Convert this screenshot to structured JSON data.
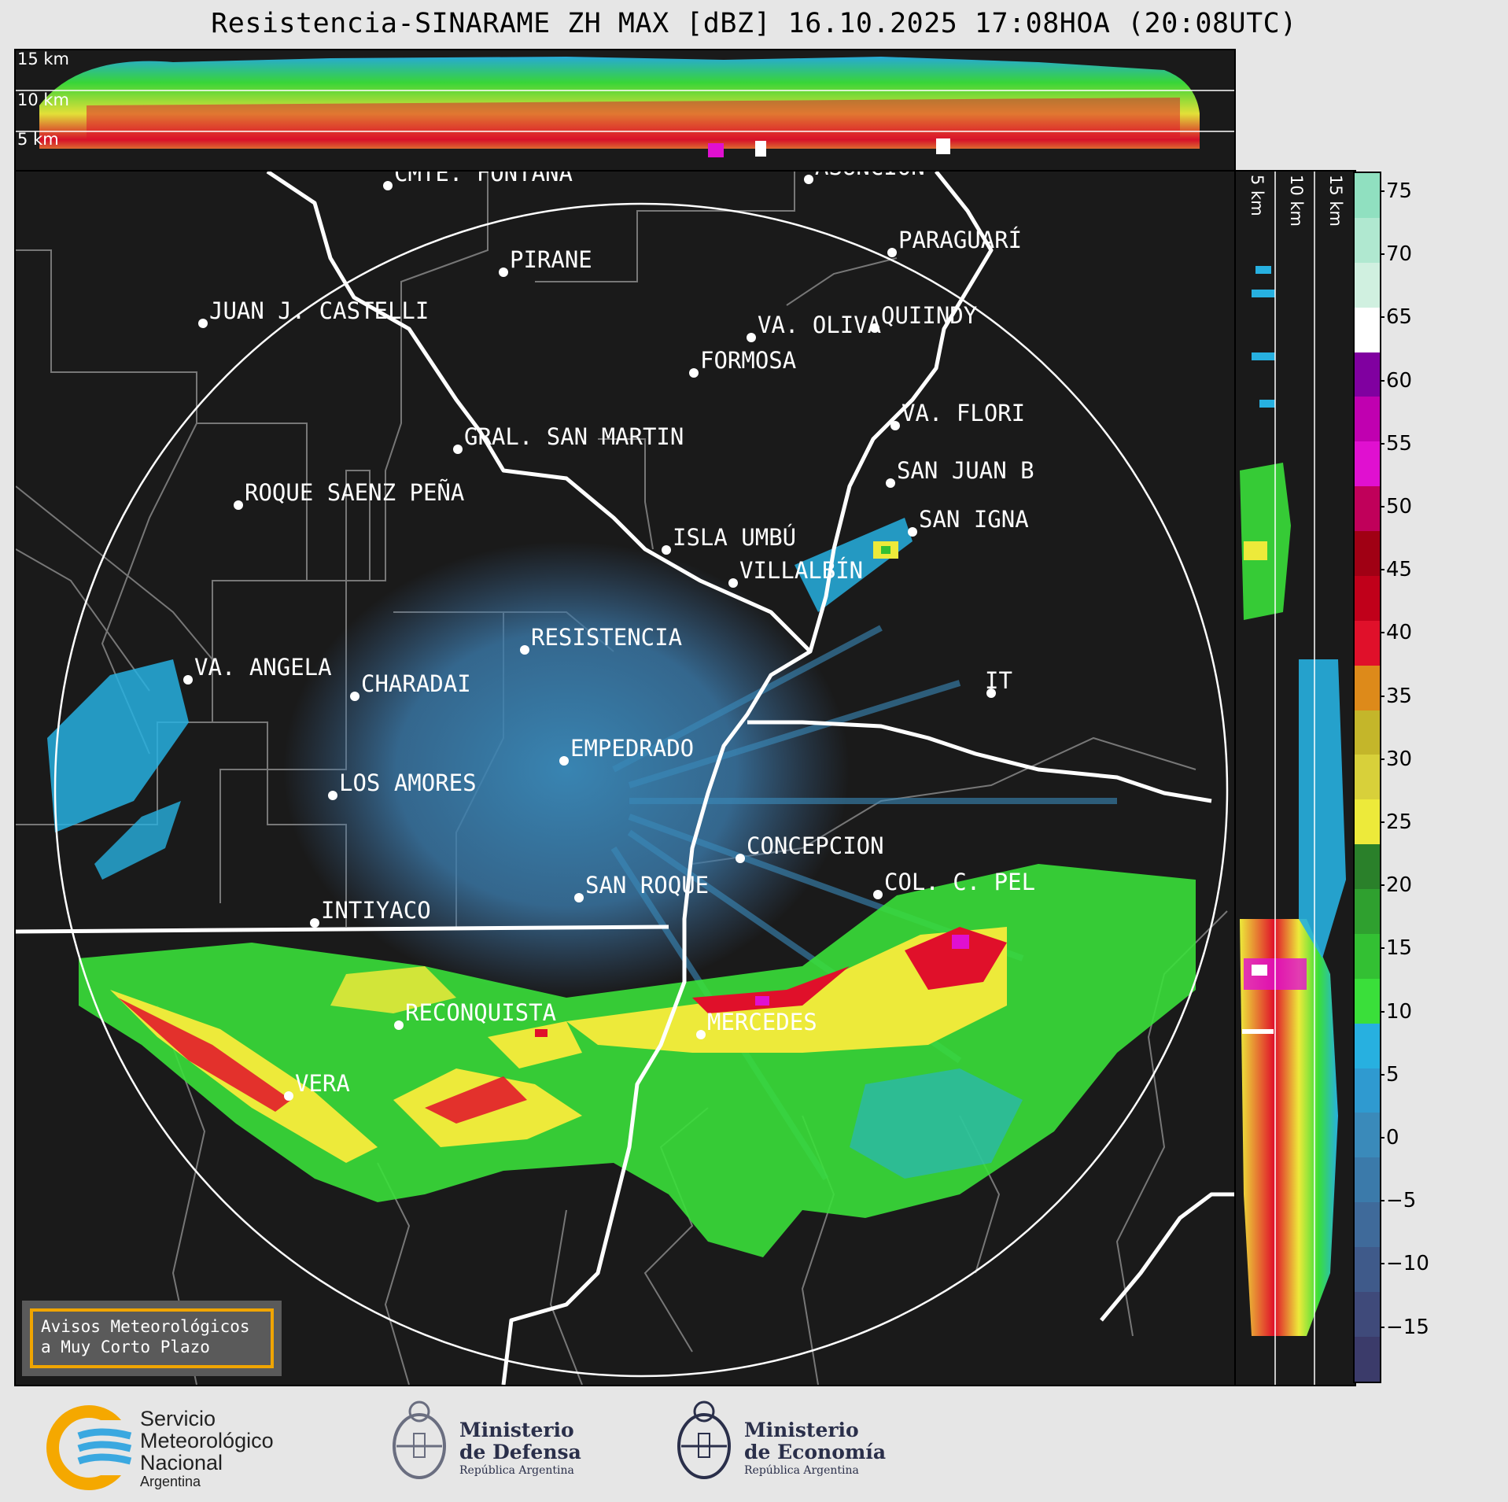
{
  "title": "Resistencia-SINARAME ZH MAX [dBZ] 16.10.2025 17:08HOA (20:08UTC)",
  "top_panel": {
    "height_labels": [
      "15 km",
      "10 km",
      "5 km"
    ]
  },
  "side_panel": {
    "height_labels": [
      "5 km",
      "10 km",
      "15 km"
    ]
  },
  "cities": [
    {
      "name": "CMTE. FONTANA"
    },
    {
      "name": "ASUNCIÓN"
    },
    {
      "name": "PARAGUARÍ"
    },
    {
      "name": "PIRANE"
    },
    {
      "name": "JUAN J. CASTELLI"
    },
    {
      "name": "VA. OLIVA"
    },
    {
      "name": "QUIINDY"
    },
    {
      "name": "FORMOSA"
    },
    {
      "name": "VA. FLORI"
    },
    {
      "name": "GRAL. SAN MARTIN"
    },
    {
      "name": "SAN JUAN B"
    },
    {
      "name": "ROQUE SAENZ PEÑA"
    },
    {
      "name": "SAN IGNA"
    },
    {
      "name": "ISLA UMBÚ"
    },
    {
      "name": "VILLALBÍN"
    },
    {
      "name": "RESISTENCIA"
    },
    {
      "name": "VA. ANGELA"
    },
    {
      "name": "CHARADAI"
    },
    {
      "name": "IT"
    },
    {
      "name": "EMPEDRADO"
    },
    {
      "name": "LOS AMORES"
    },
    {
      "name": "CONCEPCION"
    },
    {
      "name": "COL. C. PEL"
    },
    {
      "name": "SAN ROQUE"
    },
    {
      "name": "INTIYACO"
    },
    {
      "name": "RECONQUISTA"
    },
    {
      "name": "MERCEDES"
    },
    {
      "name": "VERA"
    }
  ],
  "colorbar": {
    "unit": "dBZ",
    "ticks": [
      "75",
      "70",
      "65",
      "60",
      "55",
      "50",
      "45",
      "40",
      "35",
      "30",
      "25",
      "20",
      "15",
      "10",
      "5",
      "0",
      "−5",
      "−10",
      "−15"
    ],
    "colors": [
      "#3b3b6a",
      "#3f4a7a",
      "#3f5a8a",
      "#3f6a9a",
      "#3b7aaa",
      "#3a8aba",
      "#2f9ad0",
      "#27b0e0",
      "#3adf3a",
      "#33c033",
      "#2fa02f",
      "#2a802a",
      "#edea3a",
      "#d8d03a",
      "#c4b62a",
      "#dd8a1a",
      "#e0102a",
      "#c0001a",
      "#a00014",
      "#c0005a",
      "#e010d0",
      "#c000b0",
      "#8000a0",
      "#ffffff",
      "#d0f0e0",
      "#b0e8d0",
      "#90e0c0"
    ]
  },
  "warning": {
    "line1": "Avisos Meteorológicos",
    "line2": "a Muy Corto Plazo"
  },
  "footer": {
    "smn": {
      "line1": "Servicio",
      "line2": "Meteorológico",
      "line3": "Nacional",
      "line4": "Argentina"
    },
    "defensa": {
      "line1": "Ministerio",
      "line2": "de Defensa",
      "line3": "República Argentina"
    },
    "economia": {
      "line1": "Ministerio",
      "line2": "de Economía",
      "line3": "República Argentina"
    }
  }
}
